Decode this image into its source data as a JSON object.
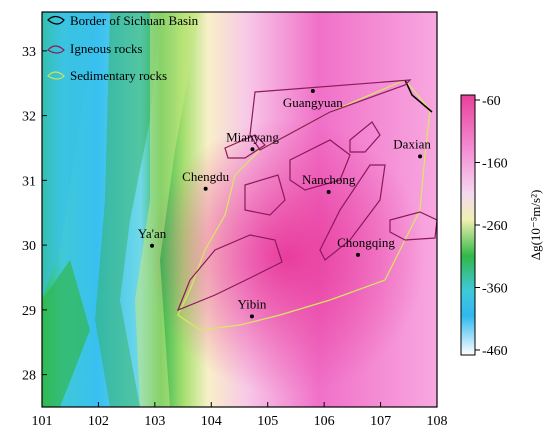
{
  "map": {
    "x_ticks": [
      "101",
      "102",
      "103",
      "104",
      "105",
      "106",
      "107",
      "108"
    ],
    "y_ticks": [
      "28",
      "29",
      "30",
      "31",
      "32",
      "33"
    ],
    "x_range": [
      101,
      108
    ],
    "y_range": [
      27.5,
      33.6
    ]
  },
  "legend": {
    "items": [
      {
        "label": "Border of Sichuan Basin",
        "color": "#000000"
      },
      {
        "label": "Igneous rocks",
        "color": "#8b1a5a"
      },
      {
        "label": "Sedimentary rocks",
        "color": "#c8e65a"
      }
    ]
  },
  "cities": [
    {
      "name": "Guangyuan",
      "lon": 105.8,
      "lat": 32.38
    },
    {
      "name": "Mianyang",
      "lon": 104.73,
      "lat": 31.48
    },
    {
      "name": "Daxian",
      "lon": 107.7,
      "lat": 31.37
    },
    {
      "name": "Chengdu",
      "lon": 103.9,
      "lat": 30.87
    },
    {
      "name": "Nanchong",
      "lon": 106.08,
      "lat": 30.82
    },
    {
      "name": "Ya'an",
      "lon": 102.95,
      "lat": 29.99
    },
    {
      "name": "Chongqing",
      "lon": 106.6,
      "lat": 29.85
    },
    {
      "name": "Yibin",
      "lon": 104.72,
      "lat": 28.9
    }
  ],
  "colorbar": {
    "ticks": [
      "-60",
      "-160",
      "-260",
      "-360",
      "-460"
    ],
    "label": "Δg(10⁻⁵m/s²)",
    "colors": [
      "#e8409a",
      "#f48ad2",
      "#f0d8f0",
      "#f0f0b0",
      "#30b848",
      "#40c8e0",
      "#30b8f0",
      "#ffffff"
    ]
  }
}
